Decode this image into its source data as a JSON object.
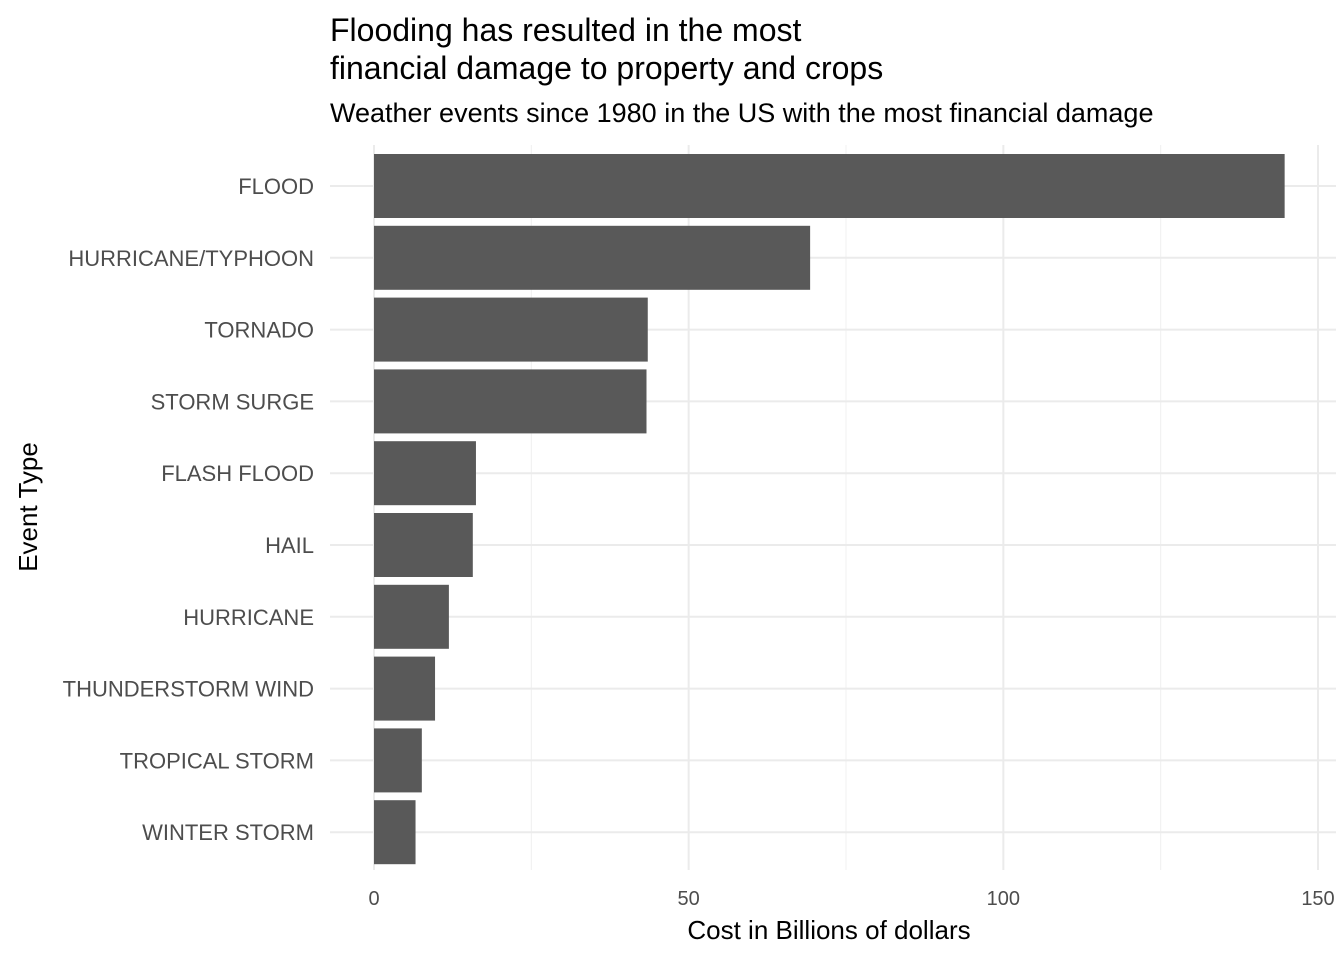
{
  "chart_data": {
    "type": "bar",
    "orientation": "horizontal",
    "title_lines": [
      "Flooding has resulted in the most",
      "financial damage to property and crops"
    ],
    "subtitle": "Weather events since 1980 in the US with the most financial damage",
    "xlabel": "Cost in Billions of dollars",
    "ylabel": "Event Type",
    "categories": [
      "FLOOD",
      "HURRICANE/TYPHOON",
      "TORNADO",
      "STORM SURGE",
      "FLASH FLOOD",
      "HAIL",
      "HURRICANE",
      "THUNDERSTORM WIND",
      "TROPICAL STORM",
      "WINTER STORM"
    ],
    "values": [
      144.7,
      69.3,
      43.5,
      43.3,
      16.2,
      15.7,
      11.9,
      9.7,
      7.6,
      6.6
    ],
    "xlim": [
      0,
      150
    ],
    "xticks": [
      0,
      50,
      100,
      150
    ],
    "xtick_labels": [
      "0",
      "50",
      "100",
      "150"
    ],
    "grid": true,
    "legend": "none",
    "bar_color": "#595959",
    "grid_color": "#ebebeb"
  }
}
